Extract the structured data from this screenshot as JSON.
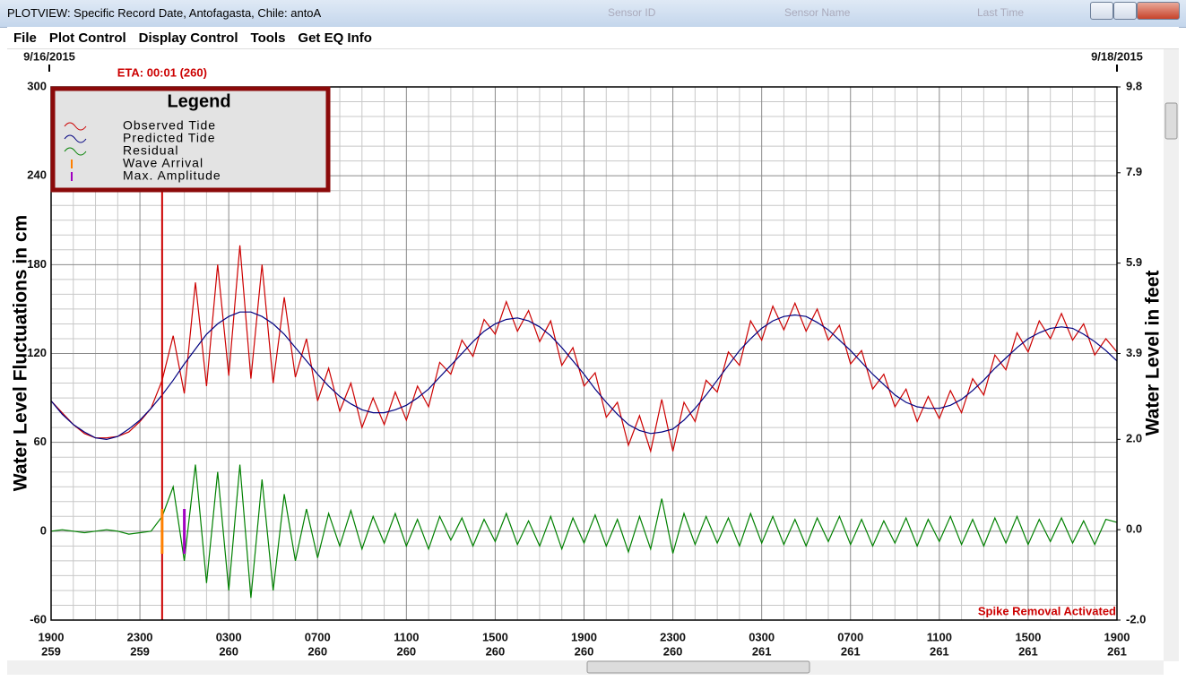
{
  "window": {
    "title": "PLOTVIEW: Specific Record Date, Antofagasta, Chile: antoA",
    "menu": [
      "File",
      "Plot Control",
      "Display Control",
      "Tools",
      "Get EQ Info"
    ],
    "background_columns": [
      "Sensor ID",
      "Sensor Name",
      "Last Time"
    ]
  },
  "chart_data": {
    "type": "line",
    "start_date_label": "9/16/2015",
    "end_date_label": "9/18/2015",
    "ylabel": "Water Level Fluctuations in cm",
    "y2label": "Water Level in feet",
    "annotation": "Spike Removal Activated",
    "eta": {
      "label": "ETA: 00:01 (260)",
      "x": 5,
      "color": "#cc0000"
    },
    "legend": {
      "title": "Legend",
      "position": "upper left"
    },
    "markers": [
      {
        "name": "Wave Arrival",
        "x": 5,
        "color": "#ff8000"
      },
      {
        "name": "Max. Amplitude",
        "x": 6,
        "color": "#a000c0"
      }
    ],
    "grid": true,
    "xlim": [
      0,
      48
    ],
    "xticks": [
      {
        "value": 0,
        "label": "1900",
        "sublabel": "259"
      },
      {
        "value": 4,
        "label": "2300",
        "sublabel": "259"
      },
      {
        "value": 8,
        "label": "0300",
        "sublabel": "260"
      },
      {
        "value": 12,
        "label": "0700",
        "sublabel": "260"
      },
      {
        "value": 16,
        "label": "1100",
        "sublabel": "260"
      },
      {
        "value": 20,
        "label": "1500",
        "sublabel": "260"
      },
      {
        "value": 24,
        "label": "1900",
        "sublabel": "260"
      },
      {
        "value": 28,
        "label": "2300",
        "sublabel": "260"
      },
      {
        "value": 32,
        "label": "0300",
        "sublabel": "261"
      },
      {
        "value": 36,
        "label": "0700",
        "sublabel": "261"
      },
      {
        "value": 40,
        "label": "1100",
        "sublabel": "261"
      },
      {
        "value": 44,
        "label": "1500",
        "sublabel": "261"
      },
      {
        "value": 48,
        "label": "1900",
        "sublabel": "261"
      }
    ],
    "ylim": [
      -60,
      300
    ],
    "yticks": [
      -60,
      0,
      60,
      120,
      180,
      240,
      300
    ],
    "y2lim": [
      -2.0,
      9.8
    ],
    "y2ticks": [
      {
        "value": -2,
        "label": "-2.0"
      },
      {
        "value": 0,
        "label": "0.0"
      },
      {
        "value": 2,
        "label": "2.0"
      },
      3.9,
      5.9,
      7.9,
      9.8
    ],
    "x": [
      0,
      0.5,
      1,
      1.5,
      2,
      2.5,
      3,
      3.5,
      4,
      4.5,
      5,
      5.5,
      6,
      6.5,
      7,
      7.5,
      8,
      8.5,
      9,
      9.5,
      10,
      10.5,
      11,
      11.5,
      12,
      12.5,
      13,
      13.5,
      14,
      14.5,
      15,
      15.5,
      16,
      16.5,
      17,
      17.5,
      18,
      18.5,
      19,
      19.5,
      20,
      20.5,
      21,
      21.5,
      22,
      22.5,
      23,
      23.5,
      24,
      24.5,
      25,
      25.5,
      26,
      26.5,
      27,
      27.5,
      28,
      28.5,
      29,
      29.5,
      30,
      30.5,
      31,
      31.5,
      32,
      32.5,
      33,
      33.5,
      34,
      34.5,
      35,
      35.5,
      36,
      36.5,
      37,
      37.5,
      38,
      38.5,
      39,
      39.5,
      40,
      40.5,
      41,
      41.5,
      42,
      42.5,
      43,
      43.5,
      44,
      44.5,
      45,
      45.5,
      46,
      46.5,
      47,
      47.5,
      48
    ],
    "series": [
      {
        "name": "Observed Tide",
        "color": "#cc0000",
        "values": [
          88,
          80,
          72,
          66,
          63,
          63,
          64,
          67,
          74,
          83,
          102,
          132,
          93,
          168,
          98,
          180,
          105,
          193,
          103,
          180,
          100,
          158,
          104,
          130,
          88,
          110,
          81,
          100,
          70,
          90,
          72,
          94,
          75,
          98,
          84,
          114,
          106,
          129,
          118,
          143,
          133,
          155,
          135,
          149,
          128,
          142,
          112,
          124,
          98,
          107,
          77,
          87,
          58,
          78,
          54,
          89,
          54,
          87,
          74,
          102,
          94,
          121,
          112,
          142,
          129,
          152,
          136,
          154,
          135,
          150,
          129,
          139,
          113,
          122,
          96,
          106,
          84,
          96,
          74,
          91,
          76,
          95,
          80,
          103,
          92,
          119,
          109,
          134,
          121,
          142,
          130,
          147,
          129,
          140,
          119,
          130,
          121
        ]
      },
      {
        "name": "Predicted Tide",
        "color": "#000080",
        "values": [
          88,
          79,
          72,
          67,
          63,
          62,
          64,
          69,
          75,
          83,
          92,
          102,
          113,
          123,
          133,
          140,
          145,
          148,
          148,
          145,
          140,
          133,
          124,
          115,
          106,
          98,
          91,
          86,
          82,
          80,
          80,
          82,
          85,
          90,
          96,
          104,
          112,
          120,
          128,
          135,
          140,
          143,
          144,
          142,
          138,
          132,
          124,
          115,
          106,
          96,
          87,
          79,
          72,
          68,
          66,
          67,
          69,
          75,
          83,
          92,
          102,
          112,
          122,
          130,
          137,
          142,
          145,
          146,
          145,
          141,
          136,
          129,
          122,
          114,
          106,
          99,
          92,
          87,
          84,
          83,
          83,
          85,
          89,
          95,
          102,
          110,
          117,
          124,
          130,
          134,
          137,
          138,
          137,
          133,
          128,
          122,
          115
        ]
      },
      {
        "name": "Residual",
        "color": "#008000",
        "values": [
          0,
          1,
          0,
          -1,
          0,
          1,
          0,
          -2,
          -1,
          0,
          10,
          30,
          -20,
          45,
          -35,
          40,
          -40,
          45,
          -45,
          35,
          -40,
          25,
          -20,
          15,
          -18,
          12,
          -10,
          14,
          -12,
          10,
          -8,
          12,
          -10,
          8,
          -12,
          10,
          -6,
          9,
          -10,
          8,
          -7,
          12,
          -9,
          7,
          -10,
          10,
          -12,
          9,
          -8,
          11,
          -10,
          8,
          -14,
          10,
          -12,
          22,
          -15,
          12,
          -9,
          10,
          -8,
          9,
          -10,
          12,
          -8,
          10,
          -9,
          8,
          -10,
          9,
          -7,
          10,
          -9,
          8,
          -10,
          7,
          -8,
          9,
          -10,
          8,
          -7,
          10,
          -9,
          8,
          -10,
          9,
          -8,
          10,
          -9,
          8,
          -7,
          9,
          -8,
          7,
          -9,
          8,
          6
        ]
      }
    ]
  }
}
